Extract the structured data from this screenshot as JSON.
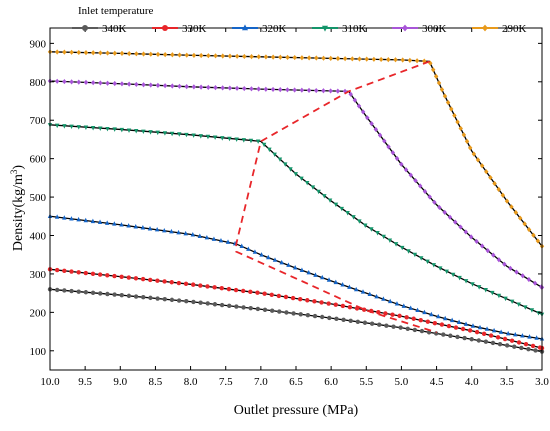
{
  "chart_data": {
    "type": "line",
    "xlabel": "Outlet pressure (MPa)",
    "ylabel_main": "Density(kg/m",
    "ylabel_sup": "3",
    "ylabel_close": ")",
    "xlim": [
      10.0,
      3.0
    ],
    "ylim": [
      50,
      940
    ],
    "x_reversed": true,
    "x_ticks": [
      "10.0",
      "9.5",
      "9.0",
      "8.5",
      "8.0",
      "7.5",
      "7.0",
      "6.5",
      "6.0",
      "5.5",
      "5.0",
      "4.5",
      "4.0",
      "3.5",
      "3.0"
    ],
    "y_ticks": [
      "100",
      "200",
      "300",
      "400",
      "500",
      "600",
      "700",
      "800",
      "900"
    ],
    "legend_title": "Inlet temperature",
    "legend_position": "top-left",
    "series": [
      {
        "name": "340K",
        "color": "#5a5a5a",
        "marker": "circle",
        "points": [
          [
            10.0,
            260
          ],
          [
            9.0,
            245
          ],
          [
            8.0,
            228
          ],
          [
            7.0,
            208
          ],
          [
            6.0,
            185
          ],
          [
            5.0,
            160
          ],
          [
            4.0,
            130
          ],
          [
            3.0,
            98
          ]
        ]
      },
      {
        "name": "330K",
        "color": "#e8262a",
        "marker": "circle",
        "points": [
          [
            10.0,
            312
          ],
          [
            9.0,
            293
          ],
          [
            8.0,
            273
          ],
          [
            7.0,
            250
          ],
          [
            6.0,
            222
          ],
          [
            5.0,
            190
          ],
          [
            4.0,
            152
          ],
          [
            3.0,
            107
          ]
        ]
      },
      {
        "name": "320K",
        "color": "#1565c8",
        "marker": "triangle",
        "points": [
          [
            10.0,
            450
          ],
          [
            9.0,
            428
          ],
          [
            8.0,
            403
          ],
          [
            7.35,
            378
          ],
          [
            7.0,
            350
          ],
          [
            6.5,
            315
          ],
          [
            6.0,
            282
          ],
          [
            5.5,
            250
          ],
          [
            5.0,
            218
          ],
          [
            4.5,
            190
          ],
          [
            4.0,
            165
          ],
          [
            3.5,
            145
          ],
          [
            3.0,
            131
          ]
        ]
      },
      {
        "name": "310K",
        "color": "#14956a",
        "marker": "triangle-down",
        "points": [
          [
            10.0,
            688
          ],
          [
            9.0,
            676
          ],
          [
            8.0,
            662
          ],
          [
            7.0,
            645
          ],
          [
            6.5,
            560
          ],
          [
            6.0,
            490
          ],
          [
            5.5,
            425
          ],
          [
            5.0,
            370
          ],
          [
            4.5,
            320
          ],
          [
            4.0,
            275
          ],
          [
            3.5,
            235
          ],
          [
            3.0,
            195
          ]
        ]
      },
      {
        "name": "300K",
        "color": "#a855d8",
        "marker": "diamond",
        "points": [
          [
            10.0,
            802
          ],
          [
            9.0,
            795
          ],
          [
            8.0,
            787
          ],
          [
            7.0,
            781
          ],
          [
            5.75,
            775
          ],
          [
            5.5,
            710
          ],
          [
            5.0,
            585
          ],
          [
            4.5,
            480
          ],
          [
            4.0,
            395
          ],
          [
            3.5,
            320
          ],
          [
            3.0,
            265
          ]
        ]
      },
      {
        "name": "290K",
        "color": "#e89a1c",
        "marker": "diamond",
        "points": [
          [
            10.0,
            878
          ],
          [
            9.0,
            874
          ],
          [
            8.0,
            869
          ],
          [
            7.0,
            865
          ],
          [
            6.0,
            861
          ],
          [
            5.0,
            857
          ],
          [
            4.6,
            853
          ],
          [
            4.4,
            770
          ],
          [
            4.0,
            620
          ],
          [
            3.5,
            490
          ],
          [
            3.0,
            372
          ]
        ]
      }
    ],
    "annotation": {
      "type": "dashed-boundary",
      "color": "#e8262a",
      "points": [
        [
          4.6,
          853
        ],
        [
          5.75,
          775
        ],
        [
          7.0,
          645
        ],
        [
          7.35,
          378
        ],
        [
          7.35,
          358
        ],
        [
          6.4,
          280
        ],
        [
          5.5,
          205
        ],
        [
          4.5,
          148
        ]
      ]
    }
  }
}
